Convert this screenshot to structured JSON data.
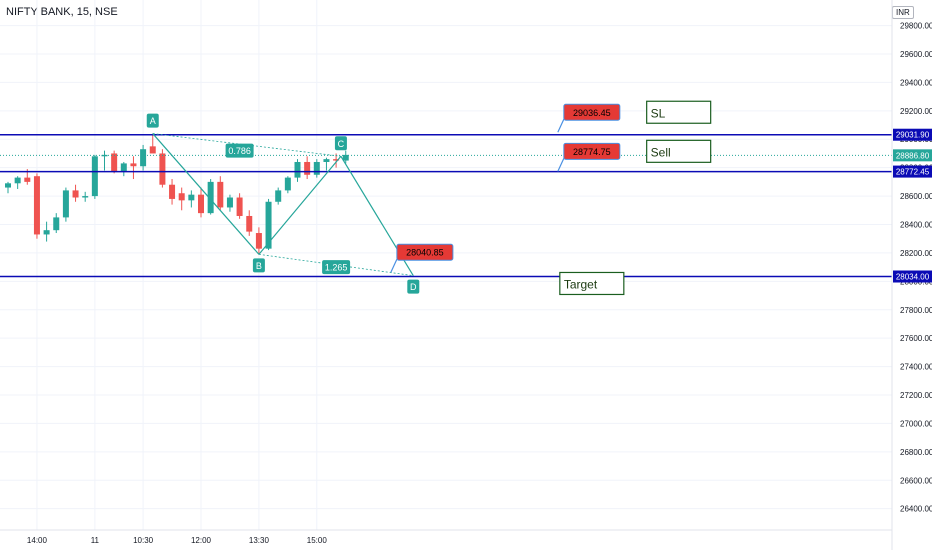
{
  "header": {
    "title": "NIFTY BANK, 15, NSE",
    "currency": "INR"
  },
  "colors": {
    "up": "#26a69a",
    "down": "#ef5350",
    "level_line": "#0b0bb5",
    "pattern": "#26a69a",
    "price_label_red": "#e53935",
    "note_box_border": "#1b5e20",
    "grid": "#f0f3fa"
  },
  "chart_data": {
    "type": "candlestick",
    "y_ticks": [
      29800,
      29600,
      29400,
      29200,
      29000,
      28800,
      28600,
      28400,
      28200,
      28000,
      27800,
      27600,
      27400,
      27200,
      27000,
      26800,
      26600,
      26400
    ],
    "y_tick_labels": [
      "29800.00",
      "29600.00",
      "29400.00",
      "29200.00",
      "29000.00",
      "28800.00",
      "28600.00",
      "28400.00",
      "28200.00",
      "28000.00",
      "27800.00",
      "27600.00",
      "27400.00",
      "27200.00",
      "27000.00",
      "26800.00",
      "26600.00",
      "26400.00"
    ],
    "ylim": [
      26250,
      29980
    ],
    "x_tick_labels": [
      {
        "label": "14:00",
        "index": 3
      },
      {
        "label": "11",
        "index": 9
      },
      {
        "label": "10:30",
        "index": 14
      },
      {
        "label": "12:00",
        "index": 20
      },
      {
        "label": "13:30",
        "index": 26
      },
      {
        "label": "15:00",
        "index": 32
      }
    ],
    "candles": [
      {
        "o": 28660,
        "h": 28700,
        "l": 28620,
        "c": 28690
      },
      {
        "o": 28690,
        "h": 28740,
        "l": 28650,
        "c": 28730
      },
      {
        "o": 28730,
        "h": 28790,
        "l": 28680,
        "c": 28700
      },
      {
        "o": 28740,
        "h": 28760,
        "l": 28300,
        "c": 28330
      },
      {
        "o": 28330,
        "h": 28420,
        "l": 28280,
        "c": 28360
      },
      {
        "o": 28360,
        "h": 28480,
        "l": 28340,
        "c": 28450
      },
      {
        "o": 28450,
        "h": 28660,
        "l": 28420,
        "c": 28640
      },
      {
        "o": 28640,
        "h": 28680,
        "l": 28560,
        "c": 28590
      },
      {
        "o": 28590,
        "h": 28630,
        "l": 28560,
        "c": 28600
      },
      {
        "o": 28600,
        "h": 28890,
        "l": 28580,
        "c": 28880
      },
      {
        "o": 28880,
        "h": 28920,
        "l": 28780,
        "c": 28890
      },
      {
        "o": 28900,
        "h": 28920,
        "l": 28760,
        "c": 28770
      },
      {
        "o": 28770,
        "h": 28840,
        "l": 28740,
        "c": 28830
      },
      {
        "o": 28830,
        "h": 28880,
        "l": 28720,
        "c": 28810
      },
      {
        "o": 28810,
        "h": 28960,
        "l": 28780,
        "c": 28930
      },
      {
        "o": 28950,
        "h": 29040,
        "l": 28910,
        "c": 28900
      },
      {
        "o": 28900,
        "h": 28930,
        "l": 28660,
        "c": 28680
      },
      {
        "o": 28680,
        "h": 28720,
        "l": 28540,
        "c": 28580
      },
      {
        "o": 28620,
        "h": 28660,
        "l": 28500,
        "c": 28570
      },
      {
        "o": 28570,
        "h": 28640,
        "l": 28520,
        "c": 28610
      },
      {
        "o": 28610,
        "h": 28660,
        "l": 28450,
        "c": 28480
      },
      {
        "o": 28480,
        "h": 28720,
        "l": 28470,
        "c": 28700
      },
      {
        "o": 28700,
        "h": 28740,
        "l": 28500,
        "c": 28520
      },
      {
        "o": 28520,
        "h": 28610,
        "l": 28490,
        "c": 28590
      },
      {
        "o": 28590,
        "h": 28620,
        "l": 28440,
        "c": 28460
      },
      {
        "o": 28460,
        "h": 28500,
        "l": 28320,
        "c": 28350
      },
      {
        "o": 28340,
        "h": 28380,
        "l": 28190,
        "c": 28230
      },
      {
        "o": 28230,
        "h": 28580,
        "l": 28220,
        "c": 28560
      },
      {
        "o": 28560,
        "h": 28660,
        "l": 28540,
        "c": 28640
      },
      {
        "o": 28640,
        "h": 28740,
        "l": 28620,
        "c": 28730
      },
      {
        "o": 28730,
        "h": 28860,
        "l": 28700,
        "c": 28840
      },
      {
        "o": 28840,
        "h": 28880,
        "l": 28720,
        "c": 28750
      },
      {
        "o": 28750,
        "h": 28860,
        "l": 28730,
        "c": 28840
      },
      {
        "o": 28840,
        "h": 28870,
        "l": 28780,
        "c": 28860
      },
      {
        "o": 28860,
        "h": 28900,
        "l": 28800,
        "c": 28850
      },
      {
        "o": 28850,
        "h": 28920,
        "l": 28830,
        "c": 28890
      }
    ],
    "levels": [
      {
        "price": 29031.9,
        "label": "29031.90"
      },
      {
        "price": 28772.45,
        "label": "28772.45"
      },
      {
        "price": 28034.0,
        "label": "28034.00"
      }
    ],
    "current_price": {
      "price": 28886.8,
      "label": "28886.80"
    },
    "pattern": {
      "points": [
        {
          "name": "A",
          "index": 15,
          "price": 29040
        },
        {
          "name": "B",
          "index": 26,
          "price": 28190
        },
        {
          "name": "C",
          "index": 34.5,
          "price": 28880
        },
        {
          "name": "D",
          "index": 42,
          "price": 28040
        }
      ],
      "ratios": [
        {
          "label": "0.786",
          "index": 24,
          "price": 28920
        },
        {
          "label": "1.265",
          "index": 34,
          "price": 28100
        }
      ]
    },
    "price_callouts": [
      {
        "label": "29036.45",
        "index": 60.5,
        "price": 29190
      },
      {
        "label": "28774.75",
        "index": 60.5,
        "price": 28915
      },
      {
        "label": "28040.85",
        "index": 43.2,
        "price": 28205
      }
    ],
    "notes": [
      {
        "label": "SL",
        "index": 69.5,
        "price": 29190
      },
      {
        "label": "Sell",
        "index": 69.5,
        "price": 28915
      },
      {
        "label": "Target",
        "index": 60.5,
        "price": 27985
      }
    ]
  }
}
